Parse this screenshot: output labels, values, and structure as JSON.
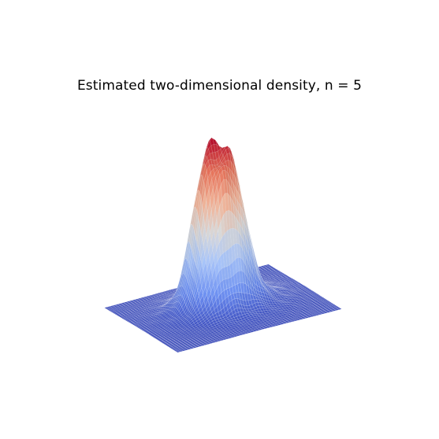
{
  "chart_data": {
    "type": "surface",
    "title": "Estimated two-dimensional density, n = 5",
    "xlabel": "",
    "ylabel": "",
    "zlabel": "",
    "axes_visible": false,
    "grid": false,
    "colormap": "coolwarm",
    "colormap_stops": [
      "#3b4cc0",
      "#6f92f3",
      "#aac7fd",
      "#dddcdc",
      "#f7b89c",
      "#e7745b",
      "#b40426"
    ],
    "x_range": [
      -4,
      4
    ],
    "y_range": [
      -4,
      4
    ],
    "z_range": [
      0,
      1
    ],
    "mesh_resolution": 60,
    "bumps": [
      {
        "x": -0.9,
        "y": 0.45,
        "height": 0.34,
        "spread": 0.55
      },
      {
        "x": -0.15,
        "y": 0.95,
        "height": 0.36,
        "spread": 0.55
      },
      {
        "x": 0.75,
        "y": 0.5,
        "height": 0.34,
        "spread": 0.55
      },
      {
        "x": 0.35,
        "y": -0.45,
        "height": 0.3,
        "spread": 0.6
      },
      {
        "x": -0.55,
        "y": -0.55,
        "height": 0.28,
        "spread": 0.6
      }
    ],
    "base_mound": {
      "height": 0.12,
      "spread": 1.45
    },
    "ripple_amplitude": 0.035,
    "peak_density": 1.0
  }
}
